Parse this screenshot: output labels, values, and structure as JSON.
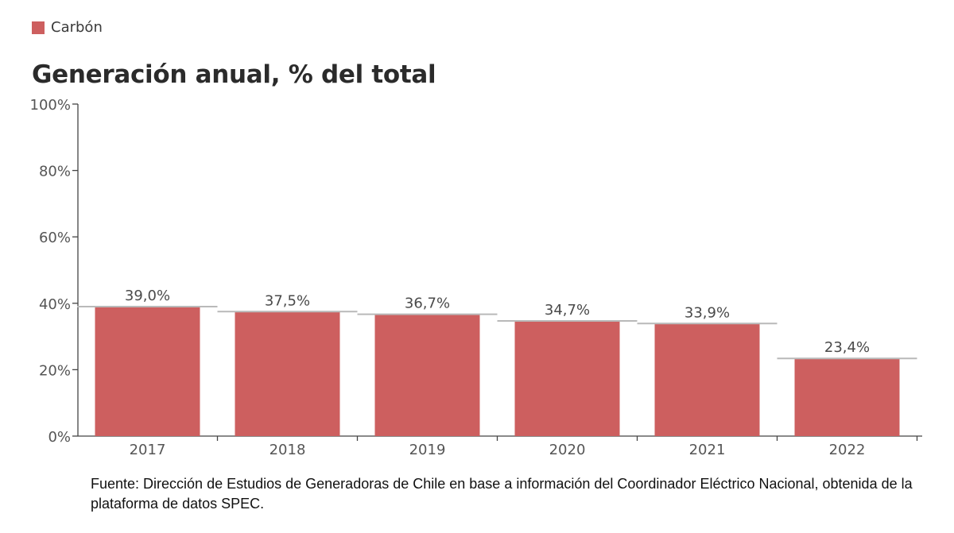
{
  "legend": {
    "label": "Carbón",
    "color": "#cd5f5f"
  },
  "title": "Generación anual, % del total",
  "source_note": "Fuente: Dirección de Estudios de Generadoras de Chile en base a información del Coordinador Eléctrico Nacional, obtenida de la plataforma de datos SPEC.",
  "chart_data": {
    "type": "bar",
    "title": "Generación anual, % del total",
    "categories": [
      "2017",
      "2018",
      "2019",
      "2020",
      "2021",
      "2022"
    ],
    "values": [
      39.0,
      37.5,
      36.7,
      34.7,
      33.9,
      23.4
    ],
    "value_labels": [
      "39,0%",
      "37,5%",
      "36,7%",
      "34,7%",
      "33,9%",
      "23,4%"
    ],
    "series_name": "Carbón",
    "ylim": [
      0,
      100
    ],
    "y_ticks": [
      0,
      20,
      40,
      60,
      80,
      100
    ],
    "y_tick_labels": [
      "0%",
      "20%",
      "40%",
      "60%",
      "80%",
      "100%"
    ],
    "grid": false,
    "legend_position": "top-left",
    "bar_color": "#cd5f5f"
  }
}
